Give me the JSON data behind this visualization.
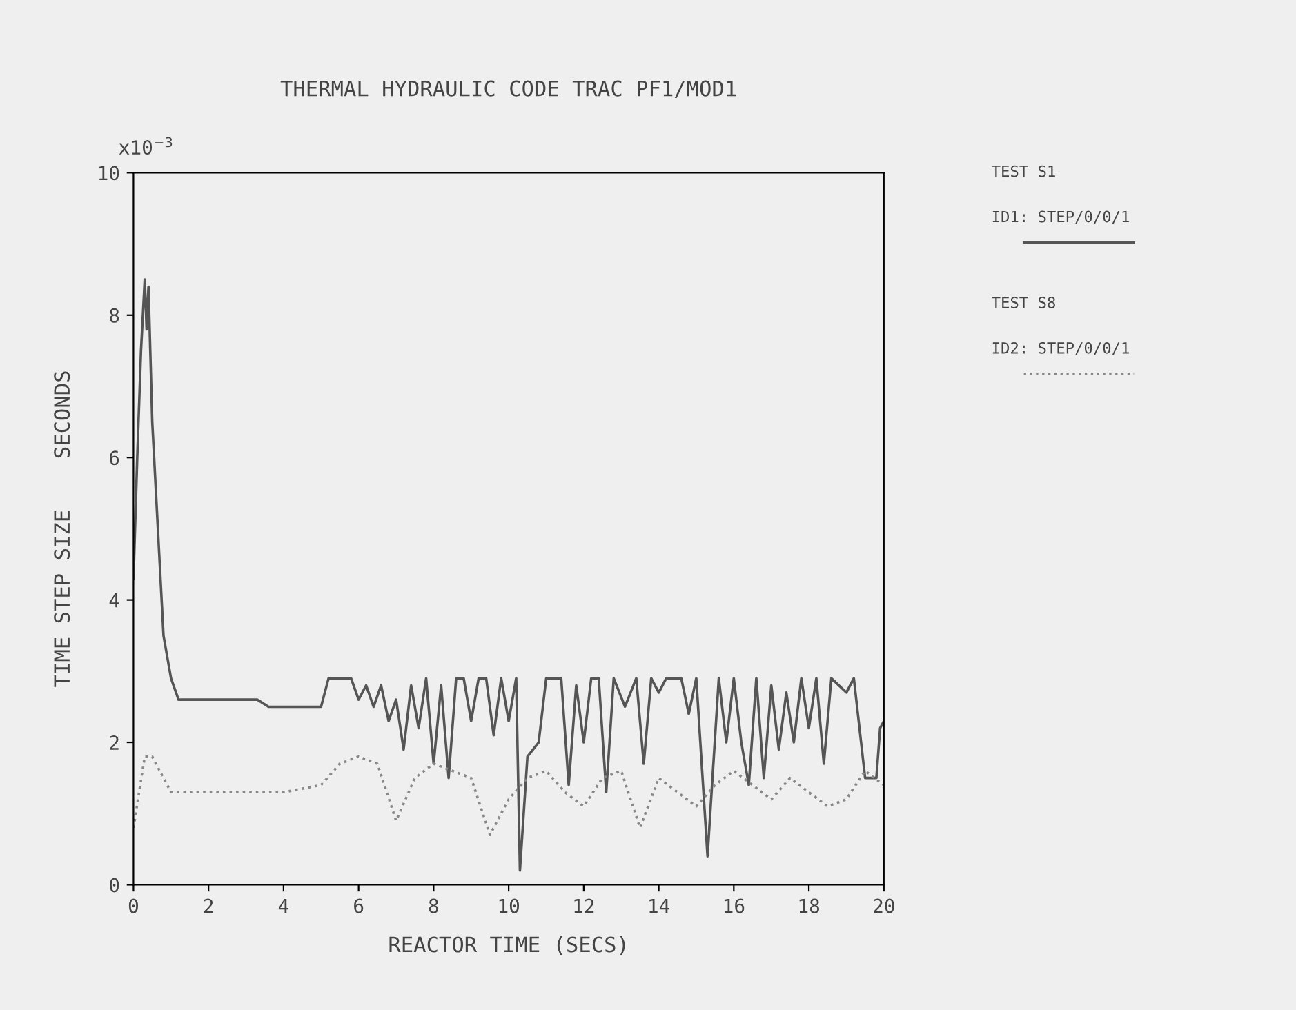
{
  "chart_data": {
    "type": "line",
    "title": "THERMAL HYDRAULIC CODE TRAC PF1/MOD1",
    "xlabel": "REACTOR TIME (SECS)",
    "ylabel": "TIME STEP SIZE    SECONDS",
    "annotations": [
      "x10$^{−3}$",
      "TEST S1",
      "TEST S8"
    ],
    "xlim": [
      0,
      20
    ],
    "xticks": [
      0,
      2,
      4,
      6,
      8,
      10,
      12,
      14,
      16,
      18,
      20
    ],
    "ylim": [
      0,
      10
    ],
    "yticks": [
      0,
      2,
      4,
      6,
      8,
      10
    ],
    "grid": false,
    "legend": "right",
    "series": [
      {
        "name": "ID1: STEP/0/0/1",
        "color": "#555555",
        "line_style": "solid",
        "x": [
          0.0,
          0.1,
          0.2,
          0.3,
          0.35,
          0.4,
          0.5,
          0.7,
          0.8,
          1.0,
          1.2,
          2.0,
          3.0,
          3.3,
          3.6,
          5.0,
          5.2,
          5.8,
          6.0,
          6.2,
          6.4,
          6.6,
          6.8,
          7.0,
          7.2,
          7.4,
          7.6,
          7.8,
          8.0,
          8.2,
          8.4,
          8.6,
          8.8,
          9.0,
          9.2,
          9.4,
          9.6,
          9.8,
          10.0,
          10.2,
          10.3,
          10.5,
          10.8,
          11.0,
          11.4,
          11.6,
          11.8,
          12.0,
          12.2,
          12.4,
          12.6,
          12.8,
          13.1,
          13.4,
          13.6,
          13.8,
          14.0,
          14.2,
          14.6,
          14.8,
          15.0,
          15.3,
          15.6,
          15.8,
          16.0,
          16.2,
          16.4,
          16.6,
          16.8,
          17.0,
          17.2,
          17.4,
          17.6,
          17.8,
          18.0,
          18.2,
          18.4,
          18.6,
          19.0,
          19.2,
          19.5,
          19.8,
          19.9,
          20.0
        ],
        "values": [
          4.3,
          6.0,
          7.5,
          8.5,
          7.8,
          8.4,
          6.5,
          4.5,
          3.5,
          2.9,
          2.6,
          2.6,
          2.6,
          2.6,
          2.5,
          2.5,
          2.9,
          2.9,
          2.6,
          2.8,
          2.5,
          2.8,
          2.3,
          2.6,
          1.9,
          2.8,
          2.2,
          2.9,
          1.7,
          2.8,
          1.5,
          2.9,
          2.9,
          2.3,
          2.9,
          2.9,
          2.1,
          2.9,
          2.3,
          2.9,
          0.2,
          1.8,
          2.0,
          2.9,
          2.9,
          1.4,
          2.8,
          2.0,
          2.9,
          2.9,
          1.3,
          2.9,
          2.5,
          2.9,
          1.7,
          2.9,
          2.7,
          2.9,
          2.9,
          2.4,
          2.9,
          0.4,
          2.9,
          2.0,
          2.9,
          2.0,
          1.4,
          2.9,
          1.5,
          2.8,
          1.9,
          2.7,
          2.0,
          2.9,
          2.2,
          2.9,
          1.7,
          2.9,
          2.7,
          2.9,
          1.5,
          1.5,
          2.2,
          2.3
        ]
      },
      {
        "name": "ID2: STEP/0/0/1",
        "color": "#888888",
        "line_style": "dotted",
        "x": [
          0.0,
          0.3,
          0.5,
          1.0,
          2,
          3,
          4,
          5,
          5.5,
          6,
          6.5,
          7,
          7.5,
          8,
          8.5,
          9,
          9.5,
          10,
          10.5,
          11,
          11.5,
          12,
          12.5,
          13,
          13.5,
          14,
          14.5,
          15,
          15.5,
          16,
          16.5,
          17,
          17.5,
          18,
          18.5,
          19,
          19.5,
          20
        ],
        "values": [
          0.8,
          1.8,
          1.8,
          1.3,
          1.3,
          1.3,
          1.3,
          1.4,
          1.7,
          1.8,
          1.7,
          0.9,
          1.5,
          1.7,
          1.6,
          1.5,
          0.7,
          1.2,
          1.5,
          1.6,
          1.3,
          1.1,
          1.5,
          1.6,
          0.8,
          1.5,
          1.3,
          1.1,
          1.4,
          1.6,
          1.4,
          1.2,
          1.5,
          1.3,
          1.1,
          1.2,
          1.6,
          1.4
        ]
      }
    ]
  }
}
